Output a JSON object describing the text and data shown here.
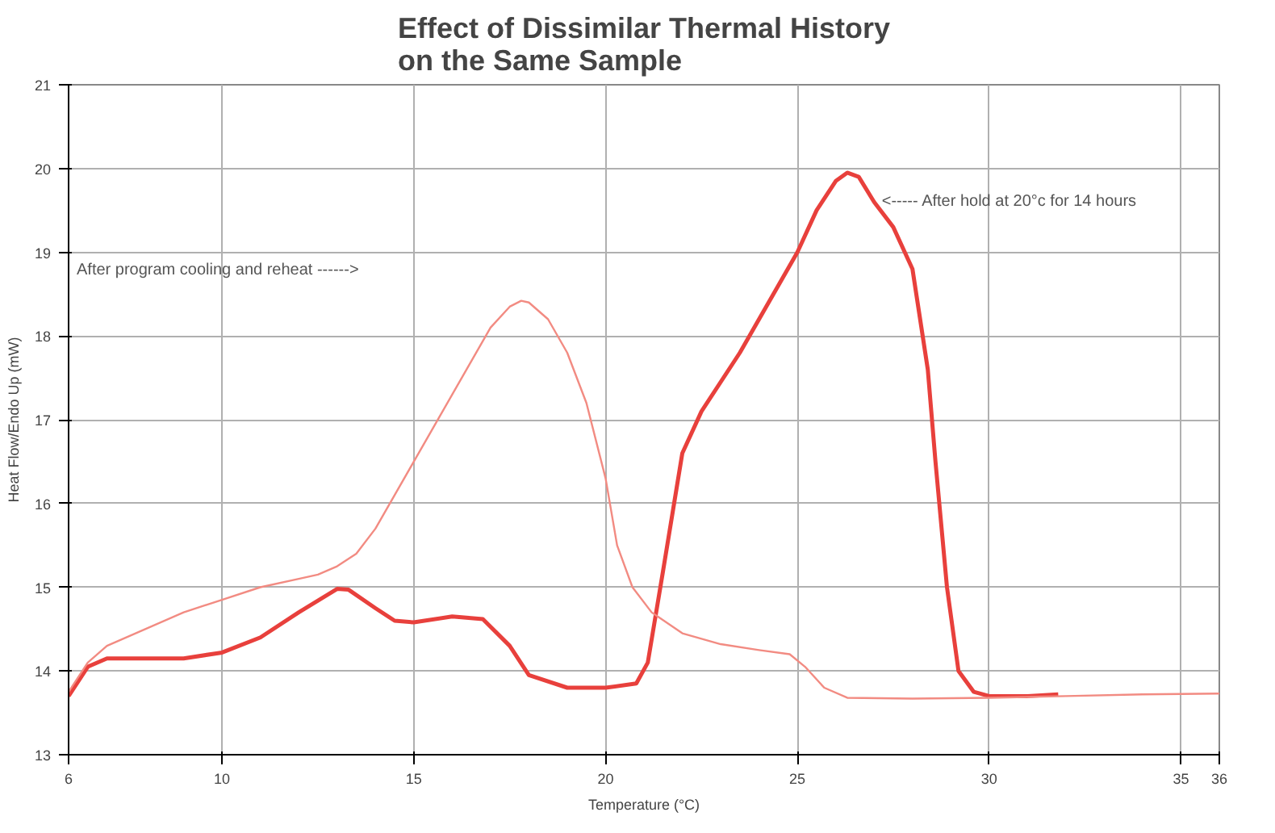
{
  "chart_data": {
    "type": "line",
    "title": "Effect of Dissimilar Thermal History\non the Same Sample",
    "xlabel": "Temperature (°C)",
    "ylabel": "Heat Flow/Endo Up (mW)",
    "xlim": [
      6,
      36
    ],
    "xticks": [
      6,
      10,
      15,
      20,
      25,
      30,
      35,
      36
    ],
    "ylim": [
      13,
      21
    ],
    "yticks": [
      13,
      14,
      15,
      16,
      17,
      18,
      19,
      20,
      21
    ],
    "grid": true,
    "marker": "none",
    "line_style": "solid",
    "series": [
      {
        "color": "#e8403c",
        "x": [
          6,
          6.5,
          7,
          8,
          9,
          10,
          11,
          12,
          13,
          13.3,
          14,
          14.5,
          15,
          16,
          16.8,
          17.5,
          18,
          19,
          20,
          20.8,
          21.1,
          21.5,
          22,
          22.5,
          23.5,
          24.5,
          25,
          25.5,
          26,
          26.3,
          26.6,
          27,
          27.5,
          28,
          28.4,
          28.6,
          28.9,
          29.2,
          29.6,
          30,
          31,
          31.8
        ],
        "values": [
          13.7,
          14.05,
          14.15,
          14.15,
          14.15,
          14.22,
          14.4,
          14.7,
          14.98,
          14.97,
          14.75,
          14.6,
          14.58,
          14.65,
          14.62,
          14.3,
          13.95,
          13.8,
          13.8,
          13.85,
          14.1,
          15.2,
          16.6,
          17.1,
          17.8,
          18.6,
          19.0,
          19.5,
          19.85,
          19.95,
          19.9,
          19.6,
          19.3,
          18.8,
          17.6,
          16.5,
          15.0,
          14.0,
          13.75,
          13.7,
          13.7,
          13.72
        ]
      },
      {
        "color": "#f28b82",
        "x": [
          6,
          6.5,
          7,
          8,
          9,
          10,
          11,
          12,
          12.5,
          13,
          13.5,
          14,
          14.5,
          15,
          15.5,
          16,
          16.5,
          17,
          17.5,
          17.8,
          18,
          18.5,
          19,
          19.5,
          20,
          20.3,
          20.7,
          21.2,
          22,
          23,
          24,
          24.8,
          25.2,
          25.7,
          26.3,
          28,
          30,
          32,
          34,
          36
        ],
        "values": [
          13.75,
          14.1,
          14.3,
          14.5,
          14.7,
          14.85,
          15.0,
          15.1,
          15.15,
          15.25,
          15.4,
          15.7,
          16.1,
          16.5,
          16.9,
          17.3,
          17.7,
          18.1,
          18.35,
          18.42,
          18.4,
          18.2,
          17.8,
          17.2,
          16.3,
          15.5,
          15.0,
          14.7,
          14.45,
          14.32,
          14.25,
          14.2,
          14.05,
          13.8,
          13.68,
          13.67,
          13.68,
          13.7,
          13.72,
          13.73
        ]
      }
    ],
    "annotations": [
      {
        "text": "<----- After hold at 20°c for 14 hours",
        "x": 27.2,
        "y": 19.6
      },
      "After program cooling and reheat ------>"
    ]
  }
}
